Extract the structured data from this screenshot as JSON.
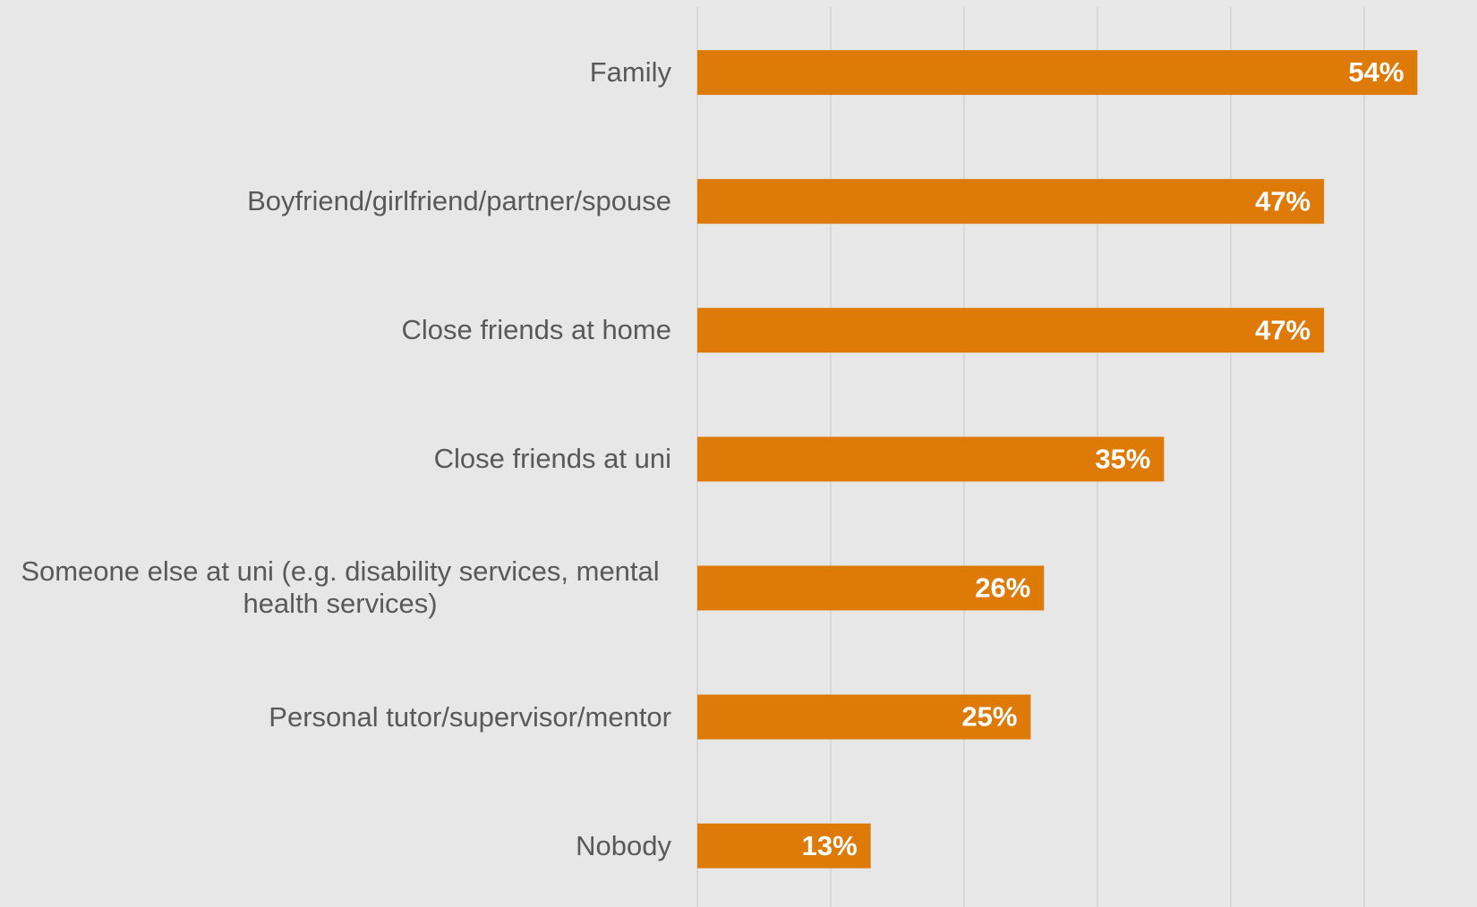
{
  "chart_data": {
    "type": "bar",
    "orientation": "horizontal",
    "categories": [
      "Family",
      "Boyfriend/girlfriend/partner/spouse",
      "Close friends at home",
      "Close friends at uni",
      "Someone else at uni (e.g. disability services, mental health services)",
      "Personal tutor/supervisor/mentor",
      "Nobody"
    ],
    "values": [
      54,
      47,
      47,
      35,
      26,
      25,
      13
    ],
    "value_labels": [
      "54%",
      "47%",
      "47%",
      "35%",
      "26%",
      "25%",
      "13%"
    ],
    "color": "#dd7a08",
    "xlim": [
      0,
      58
    ],
    "xticks": [
      0,
      10,
      20,
      30,
      40,
      50
    ],
    "grid": true
  }
}
